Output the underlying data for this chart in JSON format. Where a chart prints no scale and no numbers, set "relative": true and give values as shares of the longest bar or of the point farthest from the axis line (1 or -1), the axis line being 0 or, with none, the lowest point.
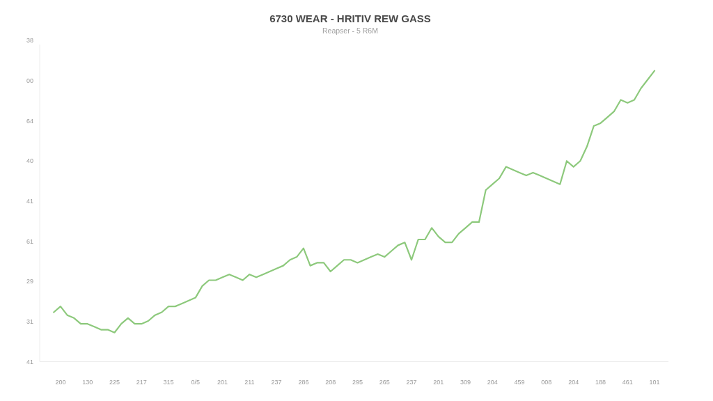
{
  "chart_data": {
    "type": "line",
    "title": "6730 WEAR - HRITIV REW GASS",
    "subtitle": "Reapser - 5 R6M",
    "categories": [
      null,
      "200",
      null,
      null,
      null,
      "130",
      null,
      null,
      null,
      "225",
      null,
      null,
      null,
      "217",
      null,
      null,
      null,
      "315",
      null,
      null,
      null,
      "0/5",
      null,
      null,
      null,
      "201",
      null,
      null,
      null,
      "211",
      null,
      null,
      null,
      "237",
      null,
      null,
      null,
      "286",
      null,
      null,
      null,
      "208",
      null,
      null,
      null,
      "295",
      null,
      null,
      null,
      "265",
      null,
      null,
      null,
      "237",
      null,
      null,
      null,
      "201",
      null,
      null,
      null,
      "309",
      null,
      null,
      null,
      "204",
      null,
      null,
      null,
      "459",
      null,
      null,
      null,
      "008",
      null,
      null,
      null,
      "204",
      null,
      null,
      null,
      "188",
      null,
      null,
      null,
      "461",
      null,
      null,
      null,
      "101"
    ],
    "values": [
      0.17,
      0.19,
      0.16,
      0.15,
      0.13,
      0.13,
      0.12,
      0.11,
      0.11,
      0.1,
      0.13,
      0.15,
      0.13,
      0.13,
      0.14,
      0.16,
      0.17,
      0.19,
      0.19,
      0.2,
      0.21,
      0.22,
      0.26,
      0.28,
      0.28,
      0.29,
      0.3,
      0.29,
      0.28,
      0.3,
      0.29,
      0.3,
      0.31,
      0.32,
      0.33,
      0.35,
      0.36,
      0.39,
      0.33,
      0.34,
      0.34,
      0.31,
      0.33,
      0.35,
      0.35,
      0.34,
      0.35,
      0.36,
      0.37,
      0.36,
      0.38,
      0.4,
      0.41,
      0.35,
      0.42,
      0.42,
      0.46,
      0.43,
      0.41,
      0.41,
      0.44,
      0.46,
      0.48,
      0.48,
      0.59,
      0.61,
      0.63,
      0.67,
      0.66,
      0.65,
      0.64,
      0.65,
      0.64,
      0.63,
      0.62,
      0.61,
      0.69,
      0.67,
      0.69,
      0.74,
      0.81,
      0.82,
      0.84,
      0.86,
      0.9,
      0.89,
      0.9,
      0.94,
      0.97,
      1.0
    ],
    "color": "#8dc97c",
    "relative": true,
    "annotations": [
      "38",
      "00",
      "64",
      "40",
      "41",
      "61",
      "29",
      "31",
      "41"
    ]
  }
}
